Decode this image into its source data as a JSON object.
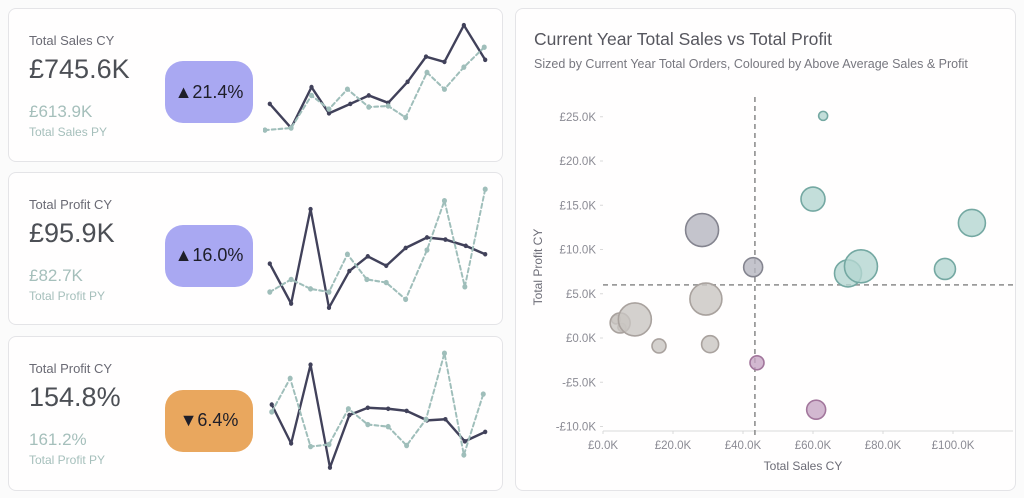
{
  "kpi_cards": [
    {
      "title": "Total Sales CY",
      "value": "£745.6K",
      "py_value": "£613.9K",
      "py_label": "Total Sales PY",
      "badge": {
        "arrow": "▲",
        "text": "21.4%",
        "bg": "#a9a8f2"
      },
      "spark_index": 1
    },
    {
      "title": "Total Profit CY",
      "value": "£95.9K",
      "py_value": "£82.7K",
      "py_label": "Total Profit PY",
      "badge": {
        "arrow": "▲",
        "text": "16.0%",
        "bg": "#a9a8f2"
      },
      "spark_index": 2
    },
    {
      "title": "Total Profit CY",
      "value": "154.8%",
      "py_value": "161.2%",
      "py_label": "Total Profit PY",
      "badge": {
        "arrow": "▼",
        "text": "6.4%",
        "bg": "#e9a75e"
      },
      "spark_index": 3
    }
  ],
  "colors": {
    "cy_line": "#41415a",
    "py_line": "#9fbeba",
    "reference_line": "#9b9b9b",
    "axis_line": "#d9d9d9"
  },
  "chart_data": [
    {
      "type": "scatter",
      "title": "Current Year Total Sales vs Total Profit",
      "subtitle": "Sized by Current Year Total Orders, Coloured by Above Average Sales & Profit",
      "xlabel": "Total Sales CY",
      "ylabel": "Total Profit CY",
      "xlim": [
        -4.5,
        117
      ],
      "ylim": [
        -10.6,
        27
      ],
      "x_ticks": [
        0,
        20,
        40,
        60,
        80,
        100
      ],
      "x_tick_labels": [
        "£0.0K",
        "£20.0K",
        "£40.0K",
        "£60.0K",
        "£80.0K",
        "£100.0K"
      ],
      "y_ticks": [
        25,
        20,
        15,
        10,
        5,
        0,
        -5,
        -10
      ],
      "y_tick_labels": [
        "£25.0K",
        "£20.0K",
        "£15.0K",
        "£10.0K",
        "£5.0K",
        "£0.0K",
        "-£5.0K",
        "-£10.0K"
      ],
      "ref_x": 43.4,
      "ref_y": 6.0,
      "legend_position": "none",
      "grid": false,
      "groups": {
        "gray": {
          "fill": "#c9c5c2",
          "stroke": "#a9a29e"
        },
        "slate": {
          "fill": "#b5b5bf",
          "stroke": "#84848f"
        },
        "purple": {
          "fill": "#c7a6c4",
          "stroke": "#a2769c"
        },
        "teal": {
          "fill": "#b4d6d1",
          "stroke": "#74a8a2"
        }
      },
      "points": [
        {
          "x": 3.7,
          "y": 2.1,
          "r": 4.5,
          "g": "gray"
        },
        {
          "x": 5.4,
          "y": 1.2,
          "r": 4,
          "g": "gray"
        },
        {
          "x": 4.9,
          "y": 1.7,
          "r": 10,
          "g": "gray"
        },
        {
          "x": 9.1,
          "y": 2.1,
          "r": 16.5,
          "g": "gray"
        },
        {
          "x": 16.0,
          "y": -0.9,
          "r": 7,
          "g": "gray"
        },
        {
          "x": 30.6,
          "y": -0.7,
          "r": 8.5,
          "g": "gray"
        },
        {
          "x": 29.4,
          "y": 4.4,
          "r": 16,
          "g": "gray"
        },
        {
          "x": 28.3,
          "y": 12.2,
          "r": 16.5,
          "g": "slate"
        },
        {
          "x": 42.9,
          "y": 8.0,
          "r": 9.5,
          "g": "slate"
        },
        {
          "x": 44.0,
          "y": -2.8,
          "r": 7,
          "g": "purple"
        },
        {
          "x": 60.9,
          "y": -8.1,
          "r": 9.5,
          "g": "purple"
        },
        {
          "x": 62.9,
          "y": 25.1,
          "r": 4.5,
          "g": "teal"
        },
        {
          "x": 60.0,
          "y": 15.7,
          "r": 12,
          "g": "teal"
        },
        {
          "x": 70.0,
          "y": 7.3,
          "r": 13.5,
          "g": "teal"
        },
        {
          "x": 73.7,
          "y": 8.1,
          "r": 16.5,
          "g": "teal"
        },
        {
          "x": 97.7,
          "y": 7.8,
          "r": 10.5,
          "g": "teal"
        },
        {
          "x": 105.4,
          "y": 13.0,
          "r": 13.5,
          "g": "teal"
        }
      ]
    },
    {
      "type": "line",
      "name": "total-sales-sparkline",
      "series": [
        {
          "name": "CY",
          "color": "#41415a",
          "width": 2.4,
          "marker_r": 2.2,
          "dash": "",
          "points": [
            [
              7,
              79
            ],
            [
              29,
              102
            ],
            [
              50,
              63
            ],
            [
              68,
              88
            ],
            [
              90,
              79
            ],
            [
              109,
              71
            ],
            [
              129,
              78
            ],
            [
              149,
              58
            ],
            [
              168,
              34
            ],
            [
              187,
              39
            ],
            [
              207,
              4
            ],
            [
              229,
              37
            ]
          ]
        },
        {
          "name": "PY",
          "color": "#9fbeba",
          "width": 2,
          "marker_r": 2.6,
          "dash": "4,3",
          "points": [
            [
              2,
              104
            ],
            [
              29,
              102
            ],
            [
              50,
              71
            ],
            [
              68,
              84
            ],
            [
              87,
              65
            ],
            [
              109,
              82
            ],
            [
              129,
              81
            ],
            [
              147,
              92
            ],
            [
              169,
              49
            ],
            [
              187,
              65
            ],
            [
              207,
              44
            ],
            [
              228,
              25
            ]
          ]
        }
      ]
    },
    {
      "type": "line",
      "name": "total-profit-sparkline",
      "series": [
        {
          "name": "CY",
          "color": "#41415a",
          "width": 2.4,
          "marker_r": 2.2,
          "dash": "",
          "points": [
            [
              7,
              75
            ],
            [
              29,
              113
            ],
            [
              49,
              23
            ],
            [
              68,
              117
            ],
            [
              89,
              82
            ],
            [
              108,
              68
            ],
            [
              127,
              77
            ],
            [
              147,
              60
            ],
            [
              169,
              50
            ],
            [
              188,
              52
            ],
            [
              209,
              58
            ],
            [
              229,
              66
            ]
          ]
        },
        {
          "name": "PY",
          "color": "#9fbeba",
          "width": 2,
          "marker_r": 2.6,
          "dash": "4,3",
          "points": [
            [
              7,
              102
            ],
            [
              29,
              90
            ],
            [
              49,
              99
            ],
            [
              68,
              102
            ],
            [
              87,
              66
            ],
            [
              107,
              90
            ],
            [
              127,
              93
            ],
            [
              147,
              109
            ],
            [
              169,
              62
            ],
            [
              187,
              15
            ],
            [
              208,
              97
            ],
            [
              229,
              4
            ]
          ]
        }
      ]
    },
    {
      "type": "line",
      "name": "profit-ratio-sparkline",
      "series": [
        {
          "name": "CY",
          "color": "#41415a",
          "width": 2.4,
          "marker_r": 2.2,
          "dash": "",
          "points": [
            [
              9,
              53
            ],
            [
              29,
              90
            ],
            [
              49,
              15
            ],
            [
              69,
              113
            ],
            [
              89,
              63
            ],
            [
              108,
              56
            ],
            [
              129,
              57
            ],
            [
              148,
              59
            ],
            [
              169,
              68
            ],
            [
              188,
              67
            ],
            [
              208,
              88
            ],
            [
              229,
              79
            ]
          ]
        },
        {
          "name": "PY",
          "color": "#9fbeba",
          "width": 2,
          "marker_r": 2.6,
          "dash": "4,3",
          "points": [
            [
              9,
              60
            ],
            [
              28,
              28
            ],
            [
              49,
              93
            ],
            [
              68,
              91
            ],
            [
              88,
              57
            ],
            [
              108,
              72
            ],
            [
              129,
              74
            ],
            [
              148,
              92
            ],
            [
              168,
              67
            ],
            [
              187,
              4
            ],
            [
              207,
              101
            ],
            [
              227,
              43
            ]
          ]
        }
      ]
    }
  ]
}
